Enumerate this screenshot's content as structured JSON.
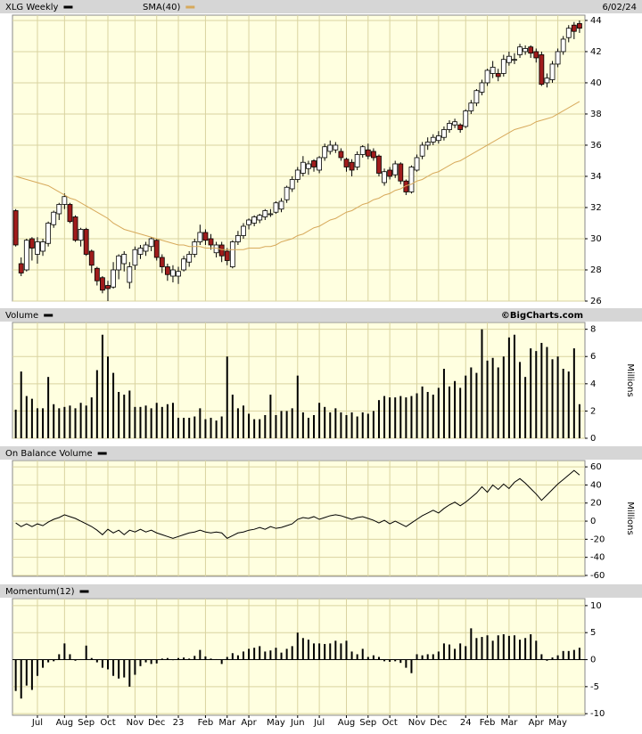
{
  "chart_data": [
    {
      "type": "candlestick",
      "date": "6/02/24",
      "xlim": [
        -0.6,
        105
      ],
      "ylim": [
        26,
        44.34
      ],
      "yticks": [
        26,
        28,
        30,
        32,
        34,
        36,
        38,
        40,
        42,
        44
      ],
      "grid": true,
      "series": [
        {
          "name": "XLG Weekly",
          "color": "#000000",
          "up_color": "#ffffff",
          "down_color": "#a01c1c",
          "open": [
            31.8,
            28.4,
            28.0,
            30.0,
            29.0,
            29.2,
            29.7,
            30.9,
            31.6,
            32.2,
            32.2,
            31.4,
            29.9,
            30.6,
            29.2,
            28.1,
            27.5,
            27.0,
            26.9,
            28.0,
            28.4,
            27.2,
            28.3,
            29.0,
            29.2,
            29.5,
            29.9,
            28.8,
            28.2,
            27.6,
            27.6,
            28.0,
            28.5,
            29.0,
            29.8,
            30.4,
            30.0,
            29.1,
            29.6,
            29.2,
            28.2,
            29.8,
            30.2,
            30.9,
            31.0,
            31.2,
            31.4,
            31.6,
            31.7,
            31.9,
            32.5,
            33.2,
            33.8,
            34.2,
            34.5,
            35.0,
            34.4,
            35.2,
            35.6,
            35.7,
            35.6,
            35.1,
            34.9,
            34.6,
            35.4,
            35.7,
            35.6,
            35.3,
            33.6,
            34.4,
            34.1,
            34.8,
            33.7,
            33.0,
            34.4,
            35.3,
            36.0,
            36.2,
            36.3,
            36.5,
            37.0,
            37.3,
            37.3,
            37.2,
            38.2,
            38.7,
            39.4,
            40.0,
            40.6,
            40.6,
            40.6,
            41.3,
            41.5,
            41.8,
            42.0,
            42.3,
            42.0,
            41.8,
            40.0,
            40.2,
            41.2,
            42.0,
            42.9,
            43.7,
            43.8
          ],
          "high": [
            31.9,
            28.8,
            30.0,
            30.1,
            30.1,
            30.0,
            31.1,
            31.8,
            32.3,
            32.9,
            32.3,
            31.5,
            30.7,
            30.7,
            29.3,
            28.2,
            27.6,
            27.3,
            28.5,
            29.0,
            29.2,
            28.5,
            29.5,
            29.6,
            29.8,
            30.1,
            30.0,
            29.0,
            28.4,
            28.3,
            28.2,
            28.9,
            29.2,
            30.0,
            30.9,
            30.6,
            30.3,
            29.8,
            29.8,
            29.4,
            29.9,
            30.5,
            31.0,
            31.3,
            31.5,
            31.6,
            31.9,
            31.9,
            32.4,
            32.6,
            33.4,
            34.0,
            34.6,
            35.3,
            35.0,
            35.1,
            35.3,
            36.1,
            36.3,
            36.2,
            35.8,
            35.2,
            35.1,
            35.6,
            36.0,
            36.1,
            35.8,
            35.4,
            34.5,
            34.6,
            35.0,
            34.9,
            33.8,
            34.7,
            35.4,
            36.2,
            36.5,
            36.7,
            36.9,
            37.2,
            37.6,
            37.7,
            37.4,
            38.3,
            38.9,
            39.6,
            40.2,
            40.9,
            41.4,
            40.9,
            41.8,
            42.0,
            41.9,
            42.5,
            42.4,
            42.4,
            42.2,
            42.0,
            40.6,
            41.4,
            42.2,
            43.0,
            43.7,
            43.9,
            44.0
          ],
          "low": [
            29.5,
            27.6,
            27.9,
            28.6,
            28.4,
            28.9,
            29.5,
            30.7,
            31.2,
            31.9,
            31.0,
            29.8,
            29.5,
            28.9,
            27.8,
            27.0,
            26.5,
            26.0,
            26.8,
            27.4,
            27.9,
            26.8,
            28.0,
            28.7,
            28.9,
            29.2,
            28.6,
            27.8,
            27.3,
            27.2,
            27.1,
            27.9,
            28.2,
            28.8,
            29.6,
            29.6,
            29.3,
            28.8,
            28.5,
            28.3,
            28.1,
            29.6,
            30.0,
            30.6,
            30.8,
            31.0,
            31.2,
            31.4,
            31.6,
            31.7,
            32.3,
            33.0,
            33.6,
            34.0,
            34.1,
            34.3,
            34.2,
            35.0,
            35.4,
            35.5,
            35.0,
            34.3,
            34.0,
            34.4,
            35.2,
            35.1,
            35.0,
            34.0,
            33.4,
            33.8,
            33.9,
            33.5,
            32.8,
            32.9,
            34.3,
            35.1,
            35.7,
            36.0,
            36.1,
            36.3,
            36.8,
            37.1,
            36.8,
            37.1,
            38.0,
            38.5,
            39.2,
            39.8,
            40.3,
            40.1,
            40.4,
            41.1,
            41.2,
            41.6,
            41.8,
            41.6,
            41.3,
            39.8,
            39.7,
            40.0,
            41.0,
            41.8,
            42.6,
            42.8,
            43.2
          ],
          "close": [
            29.6,
            27.8,
            29.9,
            29.4,
            29.8,
            29.8,
            31.0,
            31.7,
            32.2,
            32.7,
            31.1,
            29.9,
            30.6,
            29.0,
            28.3,
            27.3,
            26.7,
            26.8,
            28.0,
            28.9,
            29.0,
            28.2,
            29.3,
            29.4,
            29.6,
            30.0,
            28.8,
            28.2,
            27.7,
            28.0,
            27.9,
            28.7,
            29.0,
            29.8,
            30.4,
            29.9,
            29.6,
            29.6,
            28.9,
            28.6,
            29.8,
            30.2,
            30.8,
            31.2,
            31.4,
            31.5,
            31.8,
            31.6,
            32.3,
            32.4,
            33.3,
            33.8,
            34.4,
            34.9,
            34.8,
            34.6,
            35.2,
            35.9,
            36.0,
            36.0,
            35.2,
            34.6,
            34.4,
            35.4,
            35.9,
            35.3,
            35.2,
            34.2,
            34.3,
            34.0,
            34.8,
            33.7,
            33.0,
            34.6,
            35.2,
            36.0,
            36.2,
            36.5,
            36.6,
            37.0,
            37.4,
            37.5,
            37.0,
            38.2,
            38.7,
            39.5,
            40.0,
            40.8,
            41.0,
            40.4,
            41.5,
            41.7,
            41.5,
            42.3,
            42.2,
            41.9,
            41.6,
            39.9,
            40.3,
            41.2,
            42.0,
            42.8,
            43.5,
            43.3,
            43.5
          ]
        },
        {
          "name": "SMA(40)",
          "type": "line",
          "color": "#d7a95b",
          "values": [
            34.0,
            33.9,
            33.8,
            33.7,
            33.6,
            33.5,
            33.4,
            33.2,
            33.0,
            32.8,
            32.6,
            32.5,
            32.3,
            32.1,
            31.9,
            31.7,
            31.5,
            31.3,
            31.0,
            30.8,
            30.6,
            30.5,
            30.4,
            30.3,
            30.2,
            30.1,
            30.0,
            29.9,
            29.8,
            29.7,
            29.6,
            29.6,
            29.5,
            29.5,
            29.5,
            29.4,
            29.4,
            29.4,
            29.3,
            29.3,
            29.3,
            29.3,
            29.3,
            29.4,
            29.4,
            29.4,
            29.5,
            29.5,
            29.6,
            29.8,
            29.9,
            30.0,
            30.2,
            30.3,
            30.5,
            30.7,
            30.8,
            31.0,
            31.2,
            31.3,
            31.5,
            31.7,
            31.8,
            32.0,
            32.2,
            32.3,
            32.5,
            32.6,
            32.8,
            32.9,
            33.1,
            33.2,
            33.4,
            33.5,
            33.7,
            33.8,
            34.0,
            34.2,
            34.3,
            34.5,
            34.7,
            34.9,
            35.0,
            35.2,
            35.4,
            35.6,
            35.8,
            36.0,
            36.2,
            36.4,
            36.6,
            36.8,
            37.0,
            37.1,
            37.2,
            37.3,
            37.5,
            37.6,
            37.7,
            37.8,
            38.0,
            38.2,
            38.4,
            38.6,
            38.8
          ]
        }
      ]
    },
    {
      "type": "bar",
      "credit": "©BigCharts.com",
      "y_label": "Millions",
      "xlim": [
        -0.6,
        105
      ],
      "ylim": [
        0,
        8.5
      ],
      "yticks": [
        0,
        2,
        4,
        6,
        8
      ],
      "grid": true,
      "series": [
        {
          "name": "Volume",
          "color": "#000000",
          "values": [
            2.1,
            4.9,
            3.1,
            2.9,
            2.2,
            2.2,
            4.5,
            2.5,
            2.2,
            2.3,
            2.4,
            2.2,
            2.6,
            2.4,
            3.0,
            5.0,
            7.6,
            6.0,
            4.8,
            3.4,
            3.2,
            3.5,
            2.3,
            2.3,
            2.4,
            2.2,
            2.6,
            2.3,
            2.5,
            2.6,
            1.5,
            1.5,
            1.5,
            1.6,
            2.2,
            1.4,
            1.5,
            1.3,
            1.6,
            6.0,
            3.2,
            2.2,
            2.4,
            1.8,
            1.4,
            1.4,
            1.7,
            3.2,
            1.7,
            2.0,
            2.0,
            2.2,
            4.6,
            1.9,
            1.5,
            1.7,
            2.6,
            2.3,
            1.9,
            2.2,
            1.9,
            1.7,
            1.9,
            1.6,
            1.9,
            1.8,
            2.0,
            2.8,
            3.1,
            3.0,
            3.0,
            3.1,
            3.0,
            3.1,
            3.3,
            3.8,
            3.4,
            3.2,
            3.7,
            5.1,
            3.8,
            4.2,
            3.7,
            4.6,
            5.2,
            4.8,
            8.0,
            5.7,
            5.9,
            5.2,
            6.0,
            7.4,
            7.6,
            5.6,
            4.5,
            6.6,
            6.4,
            7.0,
            6.7,
            5.8,
            6.0,
            5.1,
            4.9,
            6.6,
            2.5
          ]
        }
      ]
    },
    {
      "type": "line",
      "y_label": "Millions",
      "xlim": [
        -0.6,
        105
      ],
      "ylim": [
        -61,
        67
      ],
      "yticks": [
        -60,
        -40,
        -20,
        0,
        20,
        40,
        60
      ],
      "grid": true,
      "series": [
        {
          "name": "On Balance Volume",
          "color": "#000000",
          "values": [
            -2,
            -6,
            -3,
            -6,
            -3,
            -5,
            -1,
            2,
            4,
            7,
            5,
            3,
            0,
            -3,
            -6,
            -10,
            -15,
            -9,
            -13,
            -10,
            -15,
            -10,
            -12,
            -9,
            -12,
            -10,
            -13,
            -15,
            -17,
            -19,
            -17,
            -15,
            -13,
            -12,
            -10,
            -12,
            -13,
            -12,
            -13,
            -19,
            -16,
            -13,
            -12,
            -10,
            -9,
            -7,
            -9,
            -6,
            -8,
            -7,
            -5,
            -3,
            2,
            4,
            3,
            5,
            2,
            4,
            6,
            7,
            6,
            4,
            2,
            4,
            5,
            3,
            1,
            -2,
            1,
            -3,
            0,
            -3,
            -6,
            -2,
            2,
            6,
            9,
            12,
            9,
            14,
            18,
            21,
            17,
            21,
            26,
            31,
            38,
            32,
            40,
            35,
            41,
            36,
            43,
            47,
            42,
            36,
            30,
            23,
            29,
            35,
            41,
            46,
            51,
            56,
            51
          ]
        }
      ]
    },
    {
      "type": "bar",
      "xlim": [
        -0.6,
        105
      ],
      "ylim": [
        -10.3,
        11.3
      ],
      "yticks": [
        -10,
        -5,
        0,
        5,
        10
      ],
      "grid": true,
      "xticks": [
        {
          "value": 4,
          "label": "Jul"
        },
        {
          "value": 9,
          "label": "Aug"
        },
        {
          "value": 13,
          "label": "Sep"
        },
        {
          "value": 17,
          "label": "Oct"
        },
        {
          "value": 22,
          "label": "Nov"
        },
        {
          "value": 26,
          "label": "Dec"
        },
        {
          "value": 30,
          "label": "23"
        },
        {
          "value": 35,
          "label": "Feb"
        },
        {
          "value": 39,
          "label": "Mar"
        },
        {
          "value": 43,
          "label": "Apr"
        },
        {
          "value": 48,
          "label": "May"
        },
        {
          "value": 52,
          "label": "Jun"
        },
        {
          "value": 56,
          "label": "Jul"
        },
        {
          "value": 61,
          "label": "Aug"
        },
        {
          "value": 65,
          "label": "Sep"
        },
        {
          "value": 69,
          "label": "Oct"
        },
        {
          "value": 74,
          "label": "Nov"
        },
        {
          "value": 78,
          "label": "Dec"
        },
        {
          "value": 83,
          "label": "24"
        },
        {
          "value": 87,
          "label": "Feb"
        },
        {
          "value": 91,
          "label": "Mar"
        },
        {
          "value": 96,
          "label": "Apr"
        },
        {
          "value": 100,
          "label": "May"
        }
      ],
      "series": [
        {
          "name": "Momentum(12)",
          "color": "#000000",
          "values": [
            -5.8,
            -7.2,
            -4.8,
            -5.6,
            -3.0,
            -1.5,
            -0.5,
            -0.3,
            1.0,
            3.0,
            1.0,
            -0.2,
            0.1,
            2.6,
            0.3,
            -0.5,
            -1.5,
            -1.8,
            -3.0,
            -3.5,
            -3.3,
            -5.0,
            -2.8,
            -1.2,
            -0.5,
            -0.8,
            -0.7,
            0.2,
            0.3,
            -0.1,
            0.3,
            0.4,
            0.2,
            0.7,
            1.8,
            0.6,
            0.2,
            0.1,
            -0.8,
            0.5,
            1.2,
            0.8,
            1.5,
            2.0,
            2.2,
            2.5,
            1.5,
            1.7,
            2.2,
            1.3,
            2.0,
            2.5,
            5.0,
            4.0,
            3.7,
            3.0,
            3.0,
            2.9,
            3.0,
            3.5,
            3.0,
            3.5,
            1.5,
            1.0,
            2.0,
            0.5,
            0.8,
            0.5,
            -0.3,
            -0.4,
            -0.3,
            -0.6,
            -1.5,
            -2.5,
            1.0,
            0.8,
            1.0,
            1.0,
            1.5,
            3.0,
            2.8,
            2.0,
            3.0,
            2.5,
            5.8,
            4.0,
            4.2,
            4.5,
            3.5,
            4.5,
            4.7,
            4.4,
            4.5,
            3.7,
            4.0,
            4.7,
            3.5,
            1.0,
            -0.2,
            0.4,
            0.8,
            1.6,
            1.6,
            1.8,
            2.2
          ]
        }
      ]
    }
  ]
}
